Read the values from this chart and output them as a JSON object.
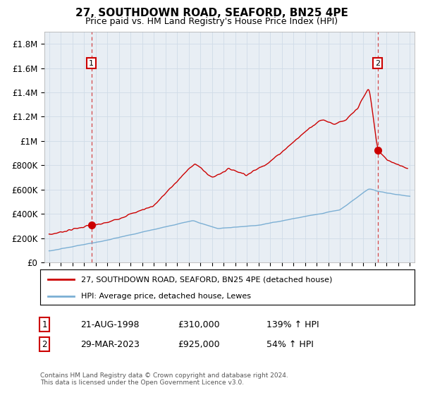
{
  "title": "27, SOUTHDOWN ROAD, SEAFORD, BN25 4PE",
  "subtitle": "Price paid vs. HM Land Registry's House Price Index (HPI)",
  "ylabel_ticks": [
    "£0",
    "£200K",
    "£400K",
    "£600K",
    "£800K",
    "£1M",
    "£1.2M",
    "£1.4M",
    "£1.6M",
    "£1.8M"
  ],
  "ylabel_values": [
    0,
    200000,
    400000,
    600000,
    800000,
    1000000,
    1200000,
    1400000,
    1600000,
    1800000
  ],
  "ylim": [
    0,
    1900000
  ],
  "xlim_start": 1994.6,
  "xlim_end": 2026.4,
  "xticks": [
    1995,
    1996,
    1997,
    1998,
    1999,
    2000,
    2001,
    2002,
    2003,
    2004,
    2005,
    2006,
    2007,
    2008,
    2009,
    2010,
    2011,
    2012,
    2013,
    2014,
    2015,
    2016,
    2017,
    2018,
    2019,
    2020,
    2021,
    2022,
    2023,
    2024,
    2025,
    2026
  ],
  "legend_line1": "27, SOUTHDOWN ROAD, SEAFORD, BN25 4PE (detached house)",
  "legend_line2": "HPI: Average price, detached house, Lewes",
  "sale1_label": "1",
  "sale1_date": "21-AUG-1998",
  "sale1_price": "£310,000",
  "sale1_hpi": "139% ↑ HPI",
  "sale1_year": 1998.64,
  "sale1_value": 310000,
  "sale2_label": "2",
  "sale2_date": "29-MAR-2023",
  "sale2_price": "£925,000",
  "sale2_hpi": "54% ↑ HPI",
  "sale2_year": 2023.23,
  "sale2_value": 925000,
  "red_color": "#cc0000",
  "blue_color": "#7bafd4",
  "grid_color": "#d0dce8",
  "bg_color": "#ffffff",
  "plot_bg_color": "#e8eef4",
  "footer": "Contains HM Land Registry data © Crown copyright and database right 2024.\nThis data is licensed under the Open Government Licence v3.0."
}
